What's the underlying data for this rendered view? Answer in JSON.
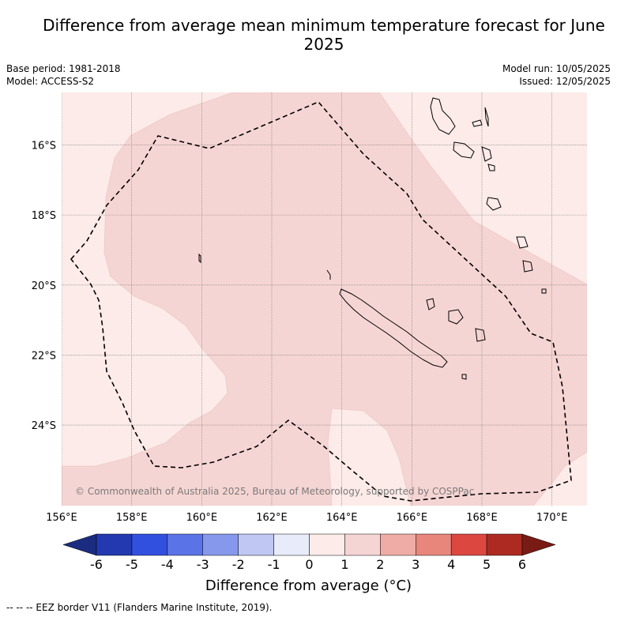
{
  "title": "Difference from average mean minimum temperature forecast for June 2025",
  "meta": {
    "base_period": "Base period: 1981-2018",
    "model": "Model: ACCESS-S2",
    "model_run": "Model run: 10/05/2025",
    "issued": "Issued: 12/05/2025"
  },
  "copyright": "© Commonwealth of Australia 2025, Bureau of Meteorology, supported by COSPPac",
  "axes": {
    "x_ticks": [
      "156°E",
      "158°E",
      "160°E",
      "162°E",
      "164°E",
      "166°E",
      "168°E",
      "170°E"
    ],
    "y_ticks": [
      "16°S",
      "18°S",
      "20°S",
      "22°S",
      "24°S"
    ],
    "lon_range": [
      156,
      171
    ],
    "lat_range": [
      -14.5,
      -26.3
    ]
  },
  "colorbar": {
    "title": "Difference from average (°C)",
    "ticks": [
      "-6",
      "-5",
      "-4",
      "-3",
      "-2",
      "-1",
      "0",
      "1",
      "2",
      "3",
      "4",
      "5",
      "6"
    ],
    "colors": [
      "#1b2c80",
      "#2339b0",
      "#3150e0",
      "#5a73e6",
      "#8698eb",
      "#c0c7f3",
      "#e8ebfa",
      "#fcebe8",
      "#f5d5d3",
      "#efaca6",
      "#e8867c",
      "#dc4840",
      "#ad2a22",
      "#7a1a14"
    ]
  },
  "map": {
    "ocean_color": "#fcebe8",
    "anomaly_color": "#f5d5d3",
    "eez_style": "dashed black",
    "legend": "--  --  -- EEZ border V11 (Flanders Marine Institute, 2019)."
  }
}
